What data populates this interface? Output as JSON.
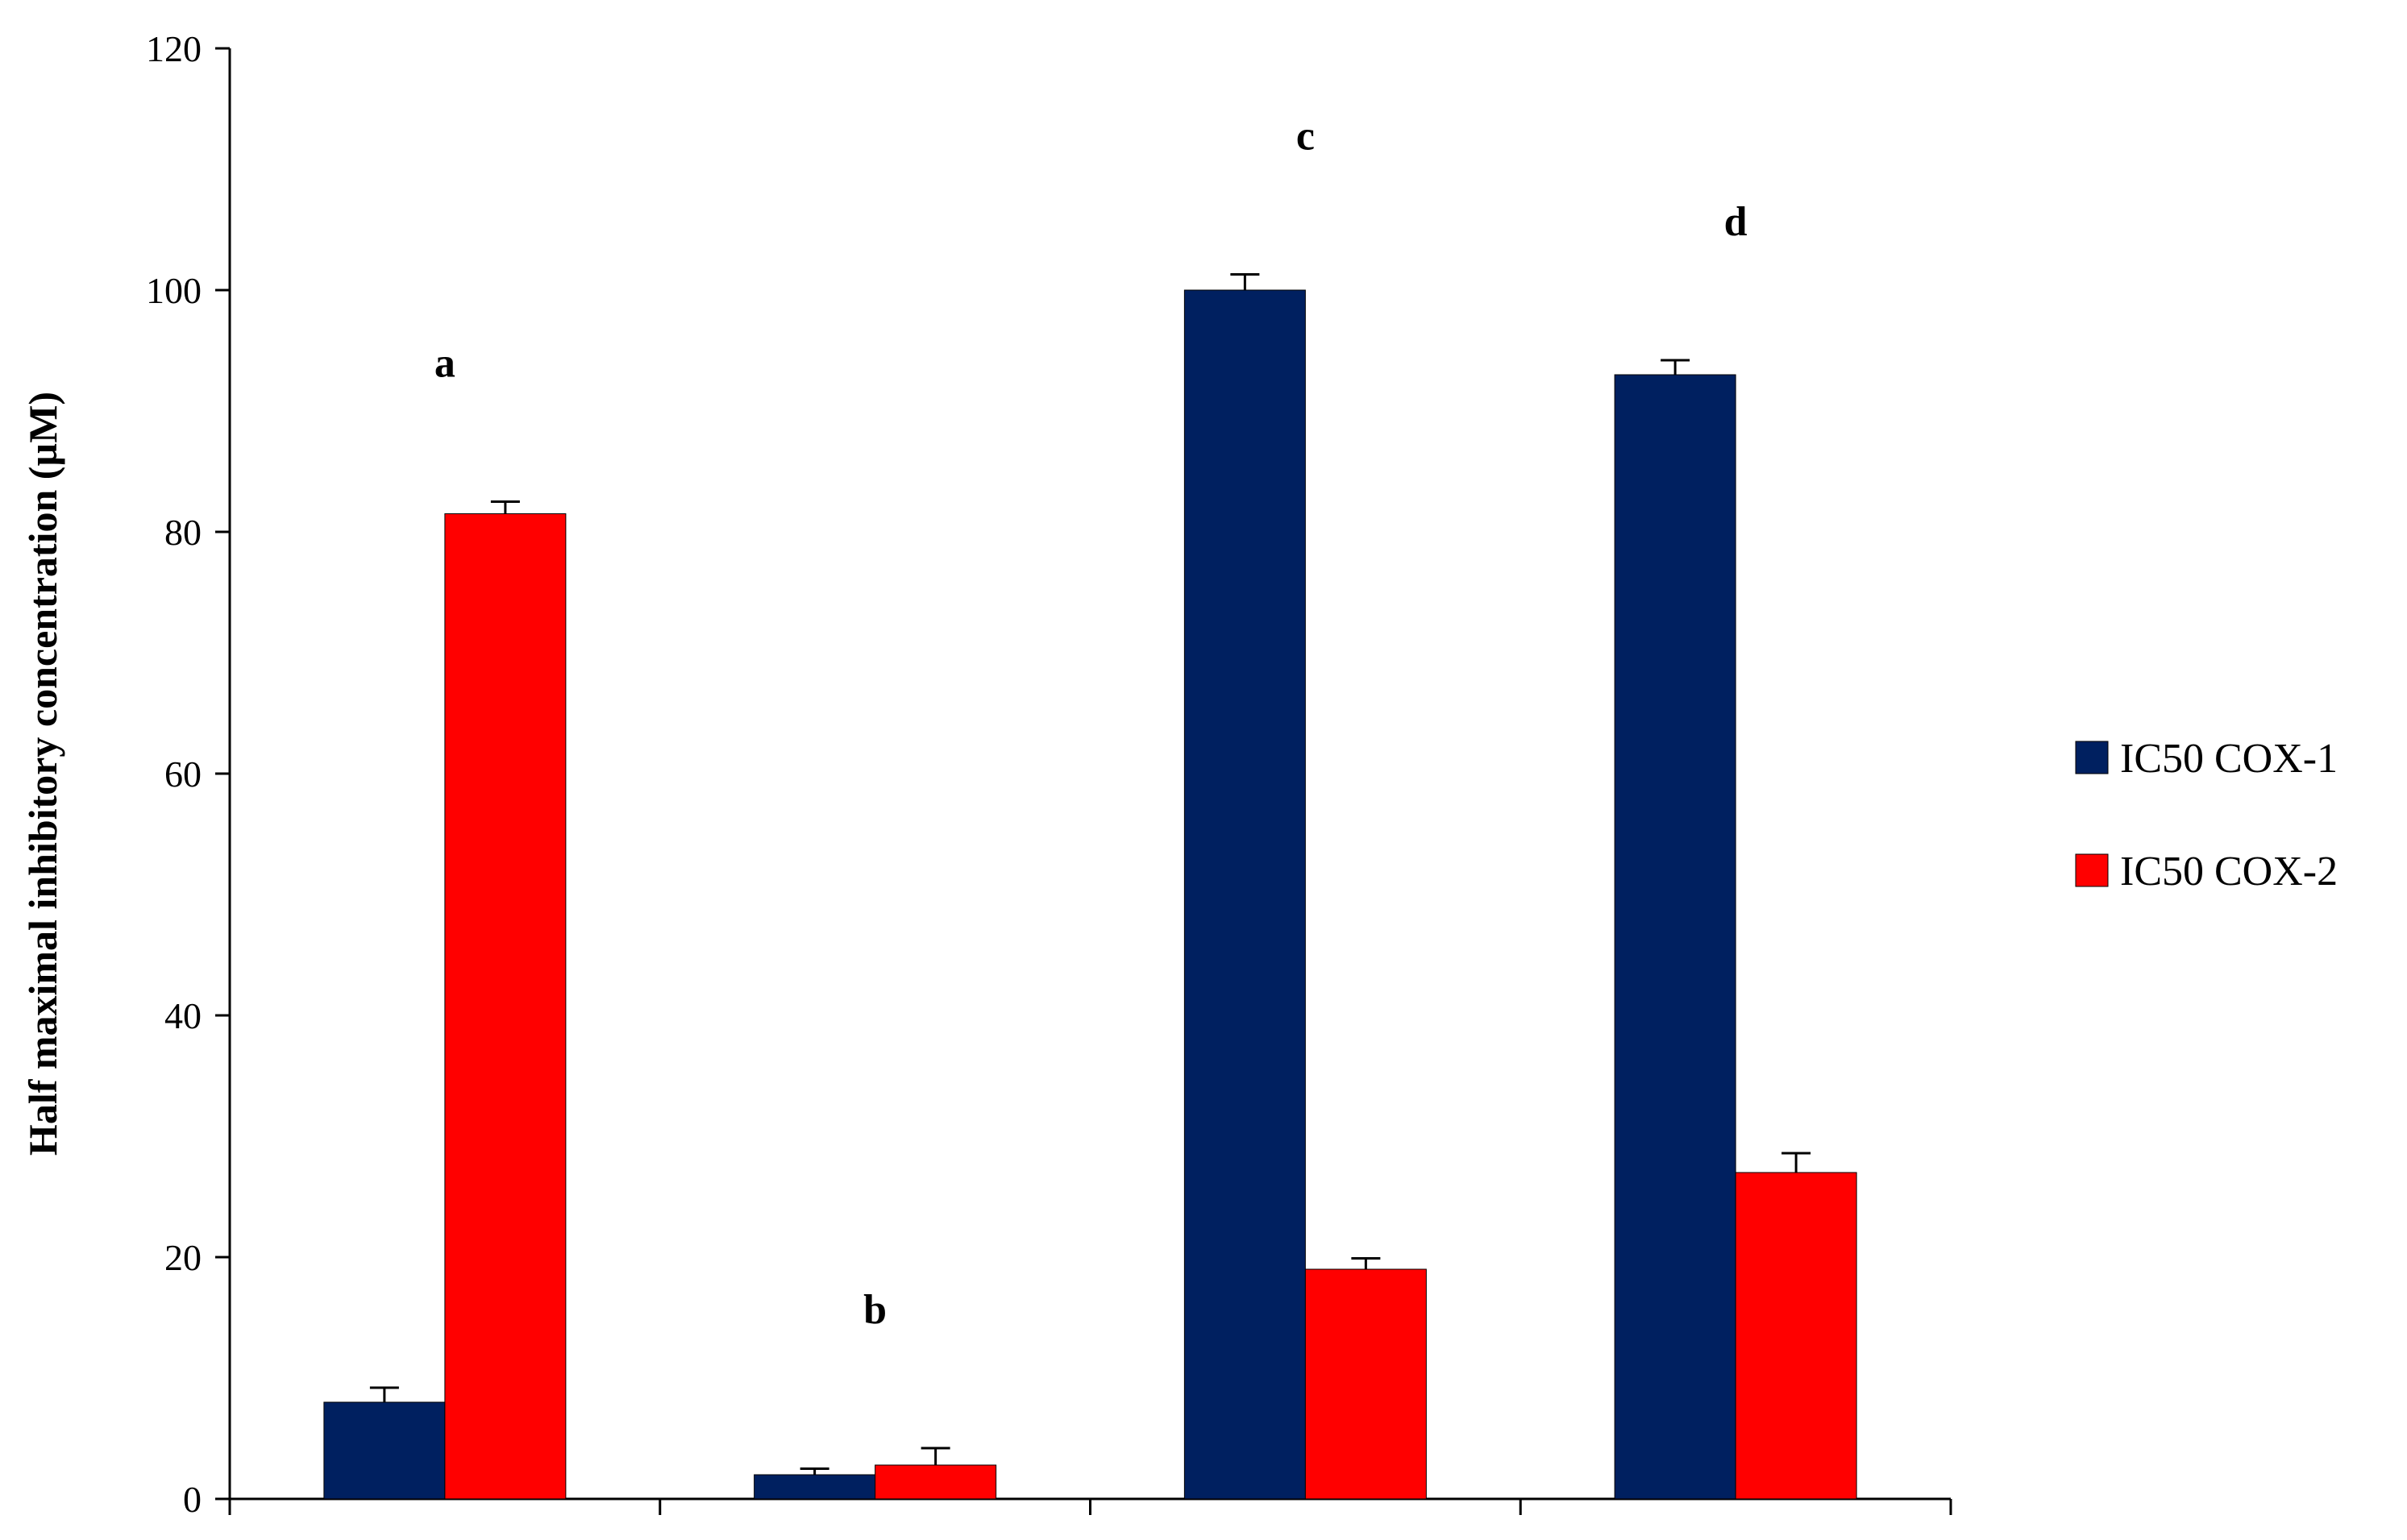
{
  "chart_data": {
    "type": "bar",
    "ylabel": "Half maximal inhibitory concentration (µM)",
    "xlabel": "",
    "ylim": [
      0,
      120
    ],
    "yticks": [
      0,
      20,
      40,
      60,
      80,
      100,
      120
    ],
    "categories": [
      "a",
      "b",
      "c",
      "d"
    ],
    "series": [
      {
        "name": "IC50 COX-1",
        "color": "#002060",
        "values": [
          8,
          2,
          100,
          93
        ],
        "errors": [
          1.2,
          0.5,
          1.3,
          1.2
        ]
      },
      {
        "name": "IC50 COX-2",
        "color": "#ff0000",
        "values": [
          81.5,
          2.8,
          19,
          27
        ],
        "errors": [
          1.0,
          1.4,
          0.9,
          1.6
        ]
      }
    ],
    "grid": false,
    "legend": "right"
  }
}
